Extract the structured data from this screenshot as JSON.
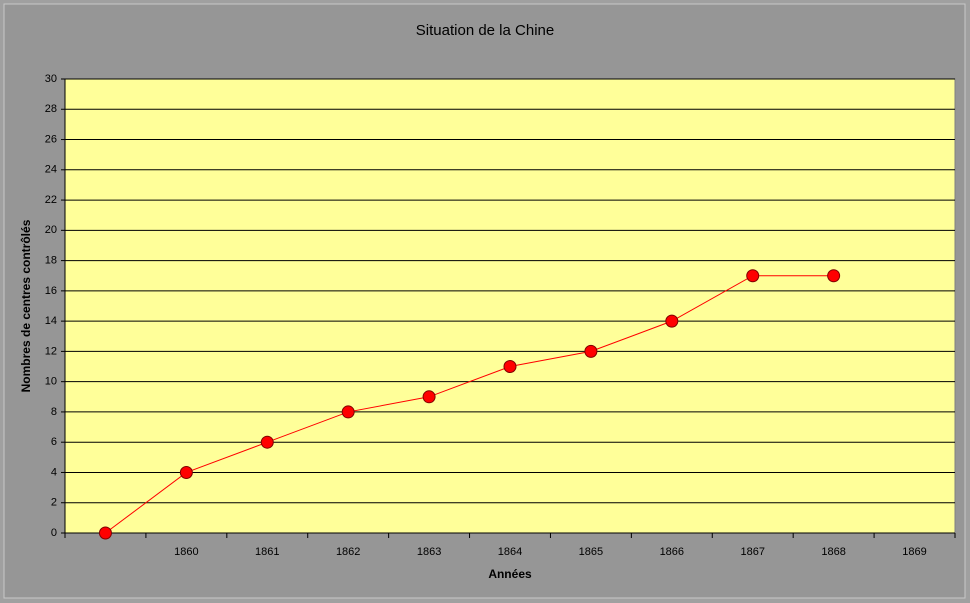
{
  "chart_data": {
    "type": "line",
    "title": "Situation de la Chine",
    "x_label": "Années",
    "y_label": "Nombres de centres contrôlés",
    "categories": [
      null,
      "1860",
      "1861",
      "1862",
      "1863",
      "1864",
      "1865",
      "1866",
      "1867",
      "1868",
      "1869"
    ],
    "series": [
      {
        "name": "Centres contrôlés",
        "color": "#ff0000",
        "values": [
          0,
          4,
          6,
          8,
          9,
          11,
          12,
          14,
          17,
          17,
          null
        ]
      }
    ],
    "ylim": [
      0,
      30
    ],
    "yticks": [
      0,
      2,
      4,
      6,
      8,
      10,
      12,
      14,
      16,
      18,
      20,
      22,
      24,
      26,
      28,
      30
    ],
    "grid": true,
    "legend": false
  }
}
